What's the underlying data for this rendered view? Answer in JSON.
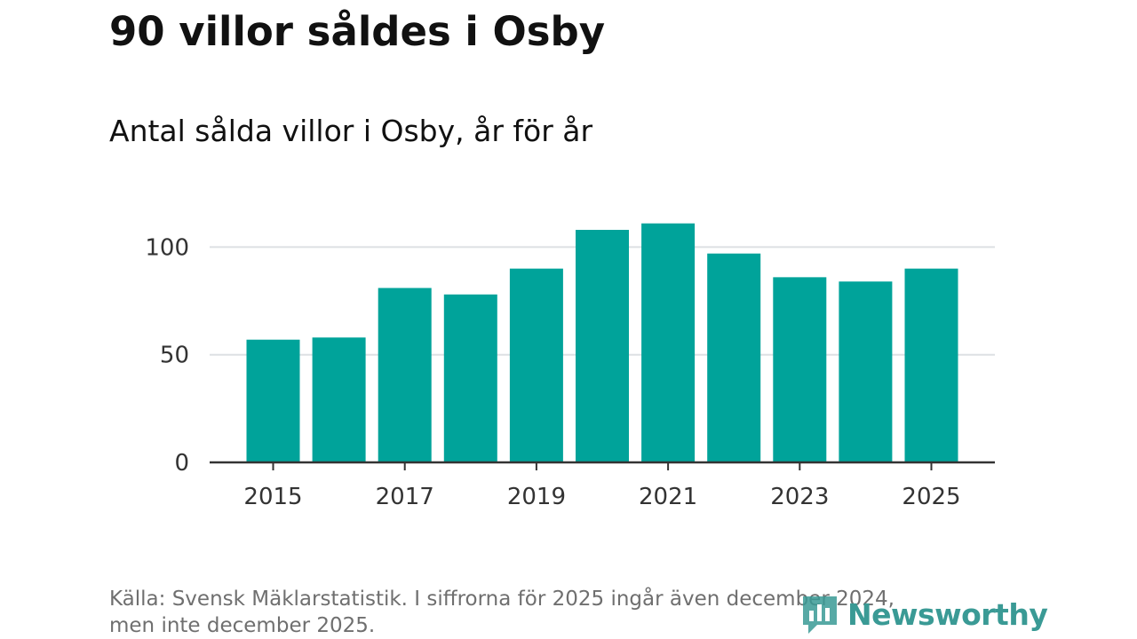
{
  "header": {
    "title": "90 villor såldes i Osby",
    "subtitle": "Antal sålda villor i Osby, år för år"
  },
  "colors": {
    "bar": "#00a39a",
    "grid": "#dde0e3",
    "axis": "#333333",
    "logo": "#3a9a95",
    "source_text": "#6f6f6f"
  },
  "chart_data": {
    "type": "bar",
    "title": "Antal sålda villor i Osby, år för år",
    "xlabel": "",
    "ylabel": "",
    "categories": [
      "2015",
      "2016",
      "2017",
      "2018",
      "2019",
      "2020",
      "2021",
      "2022",
      "2023",
      "2024",
      "2025"
    ],
    "values": [
      57,
      58,
      81,
      78,
      90,
      108,
      111,
      97,
      86,
      84,
      90
    ],
    "x_tick_labels": [
      "2015",
      "2017",
      "2019",
      "2021",
      "2023",
      "2025"
    ],
    "y_ticks": [
      0,
      50,
      100
    ],
    "y_tick_labels": [
      "0",
      "50",
      "100"
    ],
    "ylim": [
      0,
      115
    ],
    "grid": true,
    "legend": "none"
  },
  "footer": {
    "source_line1": "Källa: Svensk Mäklarstatistik. I siffrorna för 2025 ingår även december 2024,",
    "source_line2": "men inte december 2025."
  },
  "logo": {
    "name": "Newsworthy",
    "icon": "newsworthy-logo-icon"
  }
}
